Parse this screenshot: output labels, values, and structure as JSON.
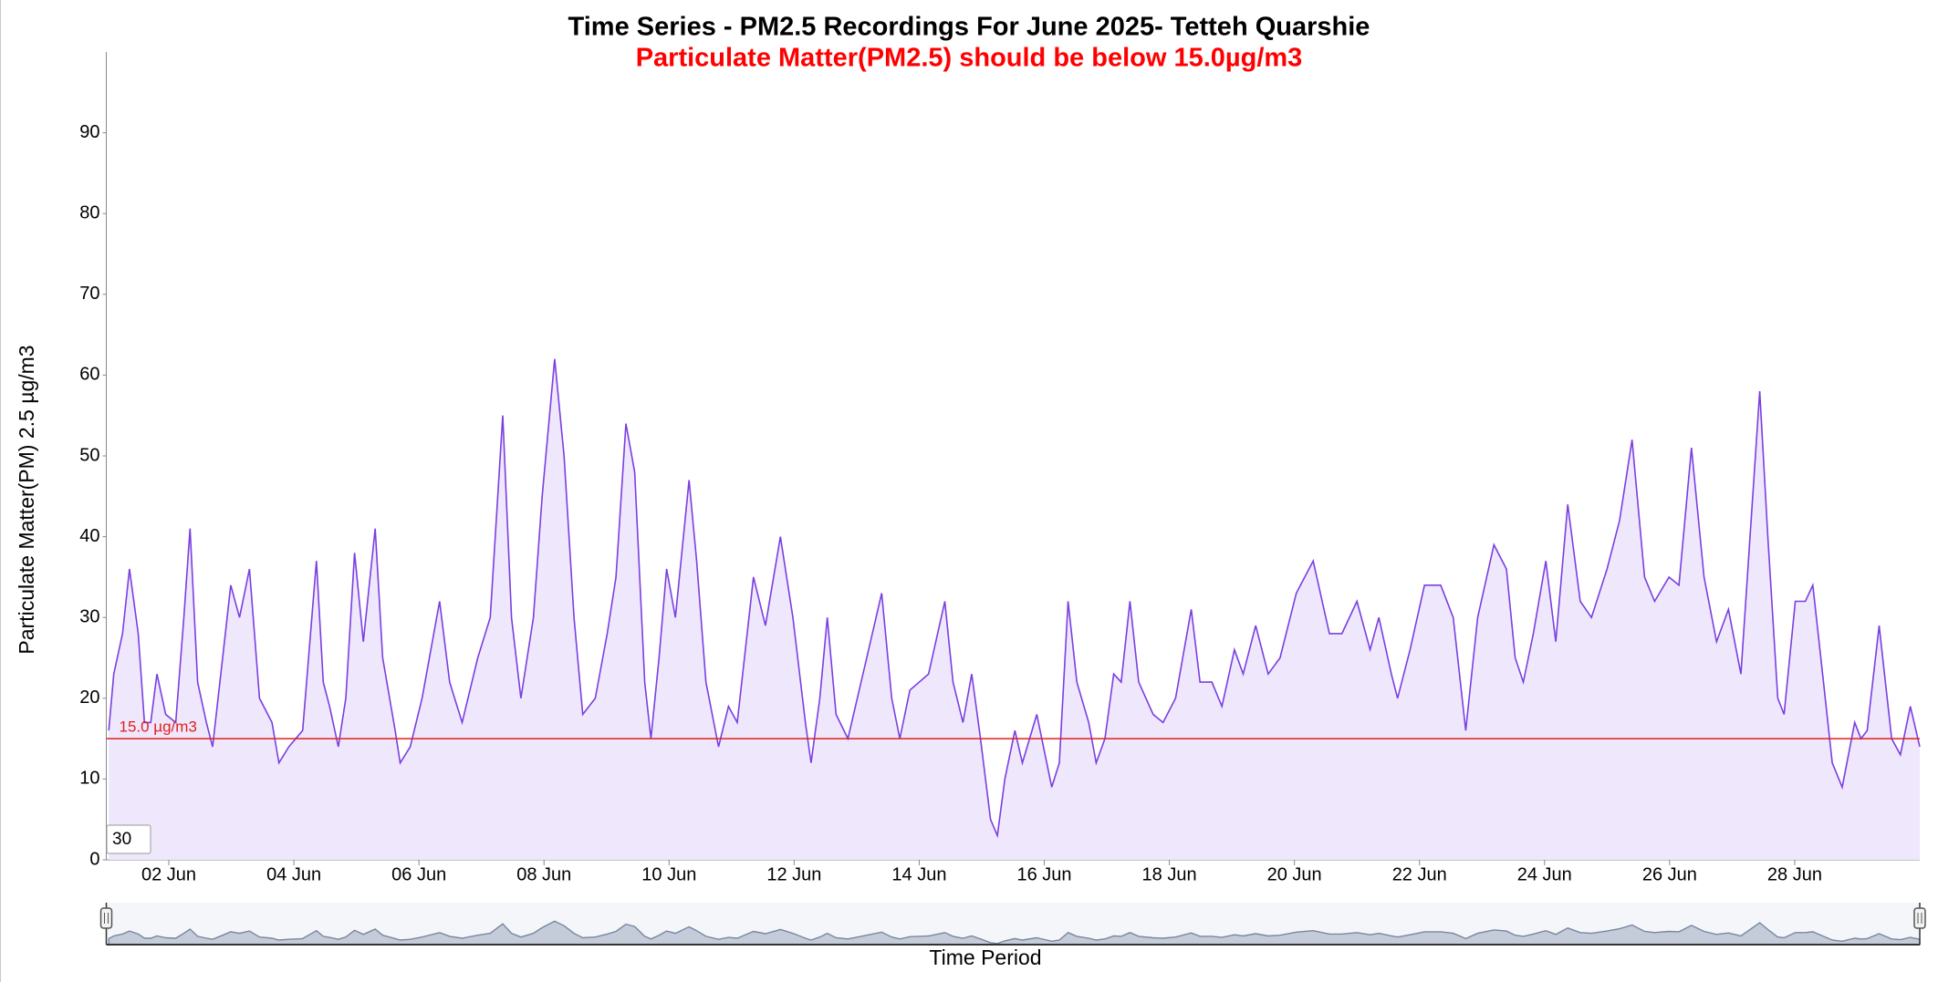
{
  "chart_data": {
    "type": "area",
    "title": "Time Series - PM2.5 Recordings For June 2025- Tetteh Quarshie",
    "subtitle": "Particulate Matter(PM2.5) should be below 15.0µg/m3",
    "y_label": "Particulate Matter(PM) 2.5 µg/m3",
    "x_label": "Time Period",
    "color": "#7a3fe0",
    "fill": "#efe8fd",
    "xlim": [
      1,
      30
    ],
    "ylim": [
      0,
      100
    ],
    "yticks": [
      0,
      10,
      20,
      30,
      40,
      50,
      60,
      70,
      80,
      90
    ],
    "xticks": [
      {
        "value": 2,
        "label": "02 Jun"
      },
      {
        "value": 4,
        "label": "04 Jun"
      },
      {
        "value": 6,
        "label": "06 Jun"
      },
      {
        "value": 8,
        "label": "08 Jun"
      },
      {
        "value": 10,
        "label": "10 Jun"
      },
      {
        "value": 12,
        "label": "12 Jun"
      },
      {
        "value": 14,
        "label": "14 Jun"
      },
      {
        "value": 16,
        "label": "16 Jun"
      },
      {
        "value": 18,
        "label": "18 Jun"
      },
      {
        "value": 20,
        "label": "20 Jun"
      },
      {
        "value": 22,
        "label": "22 Jun"
      },
      {
        "value": 24,
        "label": "24 Jun"
      },
      {
        "value": 26,
        "label": "26 Jun"
      },
      {
        "value": 28,
        "label": "28 Jun"
      }
    ],
    "grid": false,
    "threshold": {
      "value": 15,
      "label": "15.0 µg/m3",
      "color": "#e0201c"
    },
    "zoom_input": "30",
    "x": [
      1.04,
      1.12,
      1.26,
      1.37,
      1.51,
      1.61,
      1.71,
      1.81,
      1.95,
      2.11,
      2.24,
      2.34,
      2.46,
      2.6,
      2.7,
      2.86,
      2.99,
      3.13,
      3.29,
      3.45,
      3.65,
      3.76,
      3.92,
      4.14,
      4.36,
      4.47,
      4.57,
      4.71,
      4.83,
      4.97,
      5.11,
      5.3,
      5.42,
      5.62,
      5.7,
      5.86,
      6.05,
      6.33,
      6.49,
      6.69,
      6.94,
      7.14,
      7.34,
      7.48,
      7.63,
      7.83,
      7.97,
      8.17,
      8.32,
      8.48,
      8.62,
      8.82,
      9.01,
      9.15,
      9.31,
      9.45,
      9.61,
      9.71,
      9.84,
      9.96,
      10.1,
      10.32,
      10.44,
      10.59,
      10.79,
      10.95,
      11.09,
      11.35,
      11.54,
      11.78,
      11.98,
      12.18,
      12.27,
      12.41,
      12.53,
      12.67,
      12.86,
      13.16,
      13.4,
      13.56,
      13.69,
      13.85,
      14.15,
      14.41,
      14.54,
      14.7,
      14.84,
      14.98,
      15.14,
      15.25,
      15.37,
      15.53,
      15.65,
      15.88,
      16.12,
      16.24,
      16.38,
      16.52,
      16.71,
      16.83,
      16.97,
      17.11,
      17.23,
      17.37,
      17.51,
      17.74,
      17.9,
      18.1,
      18.35,
      18.49,
      18.68,
      18.84,
      19.04,
      19.18,
      19.38,
      19.58,
      19.77,
      20.03,
      20.3,
      20.56,
      20.76,
      21.0,
      21.21,
      21.35,
      21.55,
      21.65,
      21.85,
      22.08,
      22.34,
      22.54,
      22.74,
      22.93,
      23.19,
      23.39,
      23.53,
      23.66,
      23.82,
      24.02,
      24.18,
      24.37,
      24.57,
      24.75,
      25.0,
      25.2,
      25.4,
      25.6,
      25.76,
      25.99,
      26.15,
      26.35,
      26.55,
      26.75,
      26.94,
      27.14,
      27.44,
      27.57,
      27.73,
      27.83,
      28.01,
      28.17,
      28.29,
      28.46,
      28.6,
      28.76,
      28.96,
      29.06,
      29.16,
      29.35,
      29.55,
      29.69,
      29.85,
      30.0
    ],
    "values": [
      16,
      23,
      28,
      36,
      28,
      17,
      17,
      23,
      18,
      17,
      30,
      41,
      22,
      17,
      14,
      25,
      34,
      30,
      36,
      20,
      17,
      12,
      14,
      16,
      37,
      22,
      19,
      14,
      20,
      38,
      27,
      41,
      25,
      16,
      12,
      14,
      20,
      32,
      22,
      17,
      25,
      30,
      55,
      30,
      20,
      30,
      45,
      62,
      50,
      30,
      18,
      20,
      28,
      35,
      54,
      48,
      22,
      15,
      25,
      36,
      30,
      47,
      37,
      22,
      14,
      19,
      17,
      35,
      29,
      40,
      30,
      17,
      12,
      20,
      30,
      18,
      15,
      25,
      33,
      20,
      15,
      21,
      23,
      32,
      22,
      17,
      23,
      15,
      5,
      3,
      10,
      16,
      12,
      18,
      9,
      12,
      32,
      22,
      17,
      12,
      15,
      23,
      22,
      32,
      22,
      18,
      17,
      20,
      31,
      22,
      22,
      19,
      26,
      23,
      29,
      23,
      25,
      33,
      37,
      28,
      28,
      32,
      26,
      30,
      23,
      20,
      26,
      34,
      34,
      30,
      16,
      30,
      39,
      36,
      25,
      22,
      28,
      37,
      27,
      44,
      32,
      30,
      36,
      42,
      52,
      35,
      32,
      35,
      34,
      51,
      35,
      27,
      31,
      23,
      58,
      40,
      20,
      18,
      32,
      32,
      34,
      22,
      12,
      9,
      17,
      15,
      16,
      29,
      15,
      13,
      19,
      14
    ]
  }
}
